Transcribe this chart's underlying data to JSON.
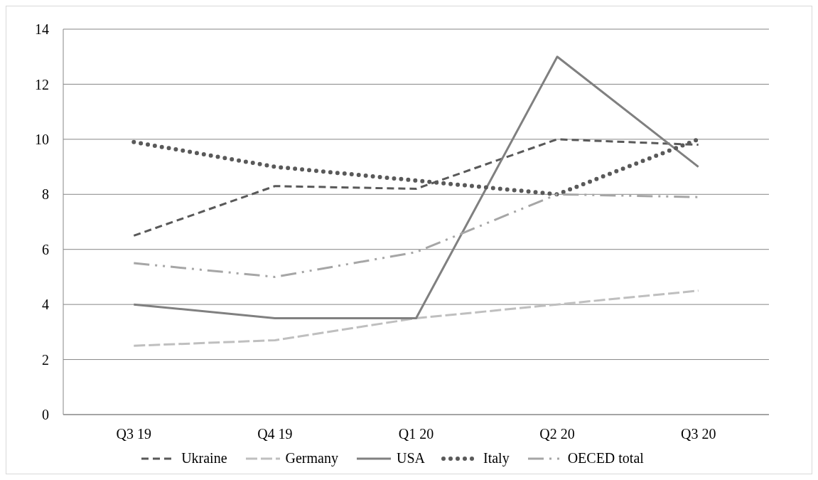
{
  "chart_data": {
    "type": "line",
    "categories": [
      "Q3 19",
      "Q4 19",
      "Q1 20",
      "Q2 20",
      "Q3 20"
    ],
    "series": [
      {
        "name": "Ukraine",
        "color": "#595959",
        "line_style": "dashed",
        "values": [
          6.5,
          8.3,
          8.2,
          10,
          9.8
        ]
      },
      {
        "name": "Germany",
        "color": "#bfbfbf",
        "line_style": "long-dashed",
        "values": [
          2.5,
          2.7,
          3.5,
          4.0,
          4.5
        ]
      },
      {
        "name": "USA",
        "color": "#808080",
        "line_style": "solid",
        "values": [
          4.0,
          3.5,
          3.5,
          13,
          9.0
        ]
      },
      {
        "name": "Italy",
        "color": "#595959",
        "line_style": "dotted",
        "values": [
          9.9,
          9.0,
          8.5,
          8.0,
          10.0
        ]
      },
      {
        "name": "OECED total",
        "color": "#a6a6a6",
        "line_style": "dash-dot-dot",
        "values": [
          5.5,
          5.0,
          5.9,
          8.0,
          7.9
        ]
      }
    ],
    "ylim": [
      0,
      14
    ],
    "yticks": [
      0,
      2,
      4,
      6,
      8,
      10,
      12,
      14
    ],
    "grid": "y",
    "legend": "bottom",
    "marker": "none"
  }
}
